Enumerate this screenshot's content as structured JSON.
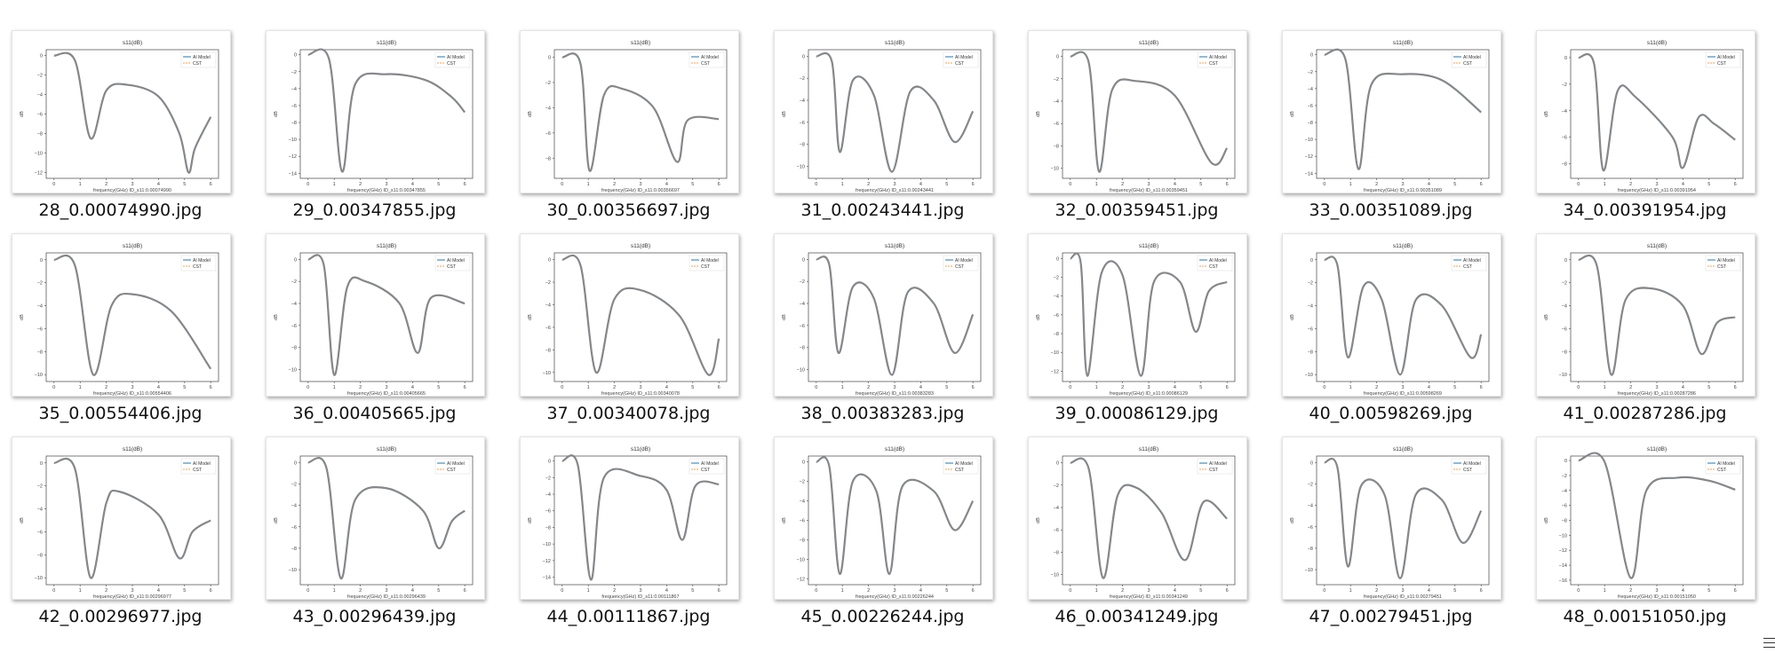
{
  "chart_common": {
    "title": "s11(dB)",
    "ylabel": "dB",
    "xlabel_prefix": "frequency(GHz) ID_s11:",
    "legend": [
      "AI Model",
      "CST"
    ],
    "legend_position": "top-right",
    "xlim": [
      -0.3,
      6.3
    ],
    "xticks": [
      0,
      1,
      2,
      3,
      4,
      5,
      6
    ],
    "colors": {
      "ai_model": "#1f77b4",
      "cst": "#ff7f0e",
      "overlap": "#7d8790"
    }
  },
  "files": [
    {
      "name": "28_0.00074990.jpg",
      "id": "0.00074990",
      "ytick_min": -12,
      "points": [
        [
          0,
          0
        ],
        [
          0.8,
          -0.5
        ],
        [
          1.4,
          -8.5
        ],
        [
          2,
          -3.6
        ],
        [
          2.8,
          -3
        ],
        [
          4,
          -4.2
        ],
        [
          4.8,
          -8
        ],
        [
          5.15,
          -12
        ],
        [
          5.4,
          -9.5
        ],
        [
          6,
          -6.3
        ]
      ]
    },
    {
      "name": "29_0.00347855.jpg",
      "id": "0.00347855",
      "ytick_min": -14,
      "points": [
        [
          0,
          0
        ],
        [
          0.8,
          -0.5
        ],
        [
          1.3,
          -13.8
        ],
        [
          1.8,
          -3.5
        ],
        [
          3,
          -2.3
        ],
        [
          4.5,
          -3
        ],
        [
          5.5,
          -5
        ],
        [
          6,
          -6.8
        ]
      ]
    },
    {
      "name": "30_0.00356697.jpg",
      "id": "0.00356697",
      "ytick_min": -8,
      "points": [
        [
          0,
          0
        ],
        [
          0.7,
          -0.5
        ],
        [
          1.05,
          -9
        ],
        [
          1.6,
          -3
        ],
        [
          2.3,
          -2.5
        ],
        [
          3.5,
          -4
        ],
        [
          4.4,
          -8.3
        ],
        [
          4.8,
          -5
        ],
        [
          6,
          -4.9
        ]
      ]
    },
    {
      "name": "31_0.00243441.jpg",
      "id": "0.00243441",
      "ytick_min": -10,
      "points": [
        [
          0,
          0
        ],
        [
          0.6,
          -0.5
        ],
        [
          0.9,
          -8.7
        ],
        [
          1.4,
          -2.2
        ],
        [
          2.2,
          -3.5
        ],
        [
          2.9,
          -10.5
        ],
        [
          3.6,
          -3.2
        ],
        [
          4.5,
          -4
        ],
        [
          5.3,
          -7.8
        ],
        [
          6,
          -5
        ]
      ]
    },
    {
      "name": "32_0.00359451.jpg",
      "id": "0.00359451",
      "ytick_min": -10,
      "points": [
        [
          0,
          0
        ],
        [
          0.7,
          -0.5
        ],
        [
          1.1,
          -10.3
        ],
        [
          1.6,
          -3
        ],
        [
          2.5,
          -2.2
        ],
        [
          4,
          -3.5
        ],
        [
          5.4,
          -9.5
        ],
        [
          6,
          -8.2
        ]
      ]
    },
    {
      "name": "33_0.00351089.jpg",
      "id": "0.00351089",
      "ytick_min": -14,
      "points": [
        [
          0,
          0
        ],
        [
          0.8,
          -0.5
        ],
        [
          1.3,
          -13.5
        ],
        [
          1.8,
          -3.5
        ],
        [
          3,
          -2.3
        ],
        [
          4.5,
          -3
        ],
        [
          6,
          -6.8
        ]
      ]
    },
    {
      "name": "34_0.00391954.jpg",
      "id": "0.00391954",
      "ytick_min": -8,
      "points": [
        [
          0,
          0
        ],
        [
          0.6,
          -0.5
        ],
        [
          0.95,
          -8.5
        ],
        [
          1.5,
          -2.5
        ],
        [
          2.2,
          -3
        ],
        [
          3.6,
          -6
        ],
        [
          4,
          -8.3
        ],
        [
          4.6,
          -4.5
        ],
        [
          5.2,
          -5
        ],
        [
          6,
          -6.2
        ]
      ]
    },
    {
      "name": "35_0.00554406.jpg",
      "id": "0.00554406",
      "ytick_min": -10,
      "points": [
        [
          0,
          0
        ],
        [
          0.8,
          -0.5
        ],
        [
          1.5,
          -10
        ],
        [
          2.2,
          -4
        ],
        [
          3,
          -3
        ],
        [
          4.5,
          -4.5
        ],
        [
          6,
          -9.5
        ]
      ]
    },
    {
      "name": "36_0.00405665.jpg",
      "id": "0.00405665",
      "ytick_min": -10,
      "points": [
        [
          0,
          0
        ],
        [
          0.6,
          -0.5
        ],
        [
          1,
          -10.5
        ],
        [
          1.5,
          -2.5
        ],
        [
          2.2,
          -2
        ],
        [
          3.5,
          -4
        ],
        [
          4.2,
          -8.5
        ],
        [
          4.7,
          -3.5
        ],
        [
          6,
          -4
        ]
      ]
    },
    {
      "name": "37_0.00340078.jpg",
      "id": "0.00340078",
      "ytick_min": -10,
      "points": [
        [
          0,
          0
        ],
        [
          0.7,
          -0.5
        ],
        [
          1.3,
          -10
        ],
        [
          2,
          -3.5
        ],
        [
          3,
          -2.7
        ],
        [
          4.5,
          -5
        ],
        [
          5.6,
          -10.2
        ],
        [
          6,
          -7
        ]
      ]
    },
    {
      "name": "38_0.00383283.jpg",
      "id": "0.00383283",
      "ytick_min": -10,
      "points": [
        [
          0,
          0
        ],
        [
          0.5,
          -0.5
        ],
        [
          0.85,
          -8.5
        ],
        [
          1.4,
          -2.5
        ],
        [
          2.2,
          -3.5
        ],
        [
          2.9,
          -10.5
        ],
        [
          3.5,
          -3
        ],
        [
          4.5,
          -4
        ],
        [
          5.3,
          -8.5
        ],
        [
          6,
          -5
        ]
      ]
    },
    {
      "name": "39_0.00086129.jpg",
      "id": "0.00086129",
      "ytick_min": -12,
      "points": [
        [
          0,
          0
        ],
        [
          0.4,
          -0.5
        ],
        [
          0.65,
          -12.5
        ],
        [
          1.2,
          -1.5
        ],
        [
          2,
          -1.8
        ],
        [
          2.7,
          -12.5
        ],
        [
          3.2,
          -2.5
        ],
        [
          4.2,
          -2.5
        ],
        [
          4.8,
          -7.8
        ],
        [
          5.3,
          -3.5
        ],
        [
          6,
          -2.5
        ]
      ]
    },
    {
      "name": "40_0.00598269.jpg",
      "id": "0.00598269",
      "ytick_min": -10,
      "points": [
        [
          0,
          0
        ],
        [
          0.5,
          -0.5
        ],
        [
          0.9,
          -8.5
        ],
        [
          1.5,
          -2.3
        ],
        [
          2.2,
          -3.5
        ],
        [
          2.9,
          -10
        ],
        [
          3.5,
          -3.5
        ],
        [
          4.5,
          -4
        ],
        [
          5.6,
          -8.5
        ],
        [
          6,
          -6.5
        ]
      ]
    },
    {
      "name": "41_0.00287286.jpg",
      "id": "0.00287286",
      "ytick_min": -10,
      "points": [
        [
          0,
          0
        ],
        [
          0.7,
          -0.5
        ],
        [
          1.25,
          -10
        ],
        [
          1.8,
          -3.5
        ],
        [
          2.8,
          -2.5
        ],
        [
          4,
          -4
        ],
        [
          4.7,
          -8.2
        ],
        [
          5.3,
          -5.5
        ],
        [
          6,
          -5
        ]
      ]
    },
    {
      "name": "42_0.00296977.jpg",
      "id": "0.00296977",
      "ytick_min": -10,
      "points": [
        [
          0,
          0
        ],
        [
          0.8,
          -0.5
        ],
        [
          1.4,
          -10
        ],
        [
          2,
          -3.5
        ],
        [
          2.5,
          -2.5
        ],
        [
          4,
          -4.5
        ],
        [
          4.8,
          -8.3
        ],
        [
          5.3,
          -6
        ],
        [
          6,
          -5
        ]
      ]
    },
    {
      "name": "43_0.00296439.jpg",
      "id": "0.00296439",
      "ytick_min": -10,
      "points": [
        [
          0,
          0
        ],
        [
          0.7,
          -0.5
        ],
        [
          1.25,
          -10.8
        ],
        [
          1.8,
          -3.5
        ],
        [
          3,
          -2.4
        ],
        [
          4.4,
          -4.5
        ],
        [
          5,
          -8
        ],
        [
          5.5,
          -5.5
        ],
        [
          6,
          -4.5
        ]
      ]
    },
    {
      "name": "44_0.00111867.jpg",
      "id": "0.00111867",
      "ytick_min": -14,
      "points": [
        [
          0,
          0
        ],
        [
          0.6,
          -0.5
        ],
        [
          1.1,
          -14.3
        ],
        [
          1.6,
          -2
        ],
        [
          3,
          -1.8
        ],
        [
          4,
          -3.5
        ],
        [
          4.6,
          -9.5
        ],
        [
          5.1,
          -3
        ],
        [
          6,
          -2.8
        ]
      ]
    },
    {
      "name": "45_0.00226244.jpg",
      "id": "0.00226244",
      "ytick_min": -12,
      "points": [
        [
          0,
          0
        ],
        [
          0.5,
          -0.5
        ],
        [
          0.9,
          -11.5
        ],
        [
          1.4,
          -2
        ],
        [
          2.3,
          -3
        ],
        [
          2.8,
          -11.5
        ],
        [
          3.3,
          -2.5
        ],
        [
          4.5,
          -3
        ],
        [
          5.3,
          -7
        ],
        [
          6,
          -4
        ]
      ]
    },
    {
      "name": "46_0.00341249.jpg",
      "id": "0.00341249",
      "ytick_min": -10,
      "points": [
        [
          0,
          0
        ],
        [
          0.7,
          -0.5
        ],
        [
          1.25,
          -10.3
        ],
        [
          1.8,
          -3
        ],
        [
          2.5,
          -2.2
        ],
        [
          3.5,
          -4.5
        ],
        [
          4.4,
          -8.7
        ],
        [
          5.1,
          -3.5
        ],
        [
          6,
          -5
        ]
      ]
    },
    {
      "name": "47_0.00279451.jpg",
      "id": "0.00279451",
      "ytick_min": -10,
      "points": [
        [
          0,
          0
        ],
        [
          0.5,
          -0.5
        ],
        [
          0.9,
          -9.7
        ],
        [
          1.4,
          -2.2
        ],
        [
          2.3,
          -3
        ],
        [
          2.9,
          -10.8
        ],
        [
          3.5,
          -3
        ],
        [
          4.5,
          -3.5
        ],
        [
          5.3,
          -7.5
        ],
        [
          6,
          -4.5
        ]
      ]
    },
    {
      "name": "48_0.00151050.jpg",
      "id": "0.00151050",
      "ytick_min": -16,
      "points": [
        [
          0,
          0
        ],
        [
          1,
          -0.2
        ],
        [
          2,
          -15.7
        ],
        [
          2.6,
          -4
        ],
        [
          3.8,
          -2.3
        ],
        [
          5,
          -2.7
        ],
        [
          6,
          -3.9
        ]
      ]
    }
  ]
}
